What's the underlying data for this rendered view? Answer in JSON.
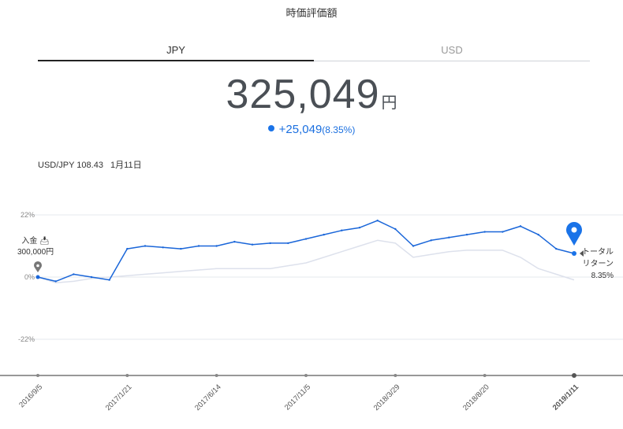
{
  "header": {
    "title": "時価評価額"
  },
  "tabs": [
    {
      "label": "JPY",
      "active": true
    },
    {
      "label": "USD",
      "active": false
    }
  ],
  "summary": {
    "value": "325,049",
    "unit": "円",
    "change": "+25,049",
    "change_pct": "(8.35%)"
  },
  "fx": {
    "rate": "USD/JPY 108.43",
    "date": "1月11日"
  },
  "annotations": {
    "deposit_label": "入金",
    "deposit_amount": "300,000円",
    "total_return_line1": "トータル",
    "total_return_line2": "リターン",
    "total_return_value": "8.35%"
  },
  "colors": {
    "main_series": "#1a66d9",
    "benchmark_series": "#dde1ec",
    "marker": "#1a73e8"
  },
  "chart_data": {
    "type": "line",
    "y_ticks": [
      "22%",
      "0%",
      "-22%"
    ],
    "y_tick_values": [
      22,
      0,
      -22
    ],
    "ylim": [
      -35,
      27
    ],
    "x_tick_labels": [
      "2016/9/5",
      "2017/1/21",
      "2017/6/14",
      "2017/11/5",
      "2018/3/29",
      "2018/8/20",
      "2019/1/11"
    ],
    "x_tick_index": [
      0,
      5,
      10,
      15,
      20,
      25,
      30
    ],
    "series": [
      {
        "values": [
          0,
          -1.5,
          1,
          0,
          -1,
          10,
          11,
          10.5,
          10,
          11,
          11,
          12.5,
          11.5,
          12,
          12,
          13.5,
          15,
          16.5,
          17.5,
          20,
          17,
          11,
          13,
          14,
          15,
          16,
          16,
          18,
          15,
          10,
          8.35
        ]
      },
      {
        "values": [
          0,
          -2,
          -1.5,
          -0.5,
          0,
          0.5,
          1,
          1.5,
          2,
          2.5,
          3,
          3,
          3,
          3,
          4,
          5,
          7,
          9,
          11,
          13,
          12,
          7,
          8,
          9,
          9.5,
          9.5,
          9.5,
          7,
          3,
          1,
          -1
        ]
      }
    ]
  }
}
